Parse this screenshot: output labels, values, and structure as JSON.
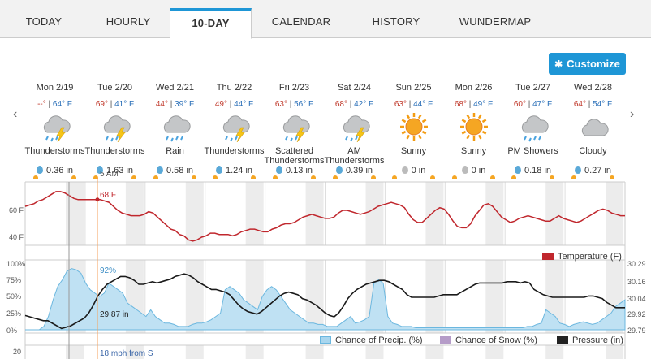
{
  "tabs": [
    {
      "label": "TODAY",
      "active": false
    },
    {
      "label": "HOURLY",
      "active": false
    },
    {
      "label": "10-DAY",
      "active": true
    },
    {
      "label": "CALENDAR",
      "active": false
    },
    {
      "label": "HISTORY",
      "active": false
    },
    {
      "label": "WUNDERMAP",
      "active": false
    }
  ],
  "customize_label": "Customize",
  "nav": {
    "prev": "‹",
    "next": "›"
  },
  "days": [
    {
      "date": "Mon 2/19",
      "hi": "--°",
      "lo": "64° F",
      "icon": "thunderstorm-icon",
      "condition": "Thunderstorms",
      "precip": "0.36 in"
    },
    {
      "date": "Tue 2/20",
      "hi": "69°",
      "lo": "41° F",
      "icon": "thunderstorm-icon",
      "condition": "Thunderstorms",
      "precip": "1.63 in"
    },
    {
      "date": "Wed 2/21",
      "hi": "44°",
      "lo": "39° F",
      "icon": "rain-icon",
      "condition": "Rain",
      "precip": "0.58 in"
    },
    {
      "date": "Thu 2/22",
      "hi": "49°",
      "lo": "44° F",
      "icon": "thunderstorm-icon",
      "condition": "Thunderstorms",
      "precip": "1.24 in"
    },
    {
      "date": "Fri 2/23",
      "hi": "63°",
      "lo": "56° F",
      "icon": "thunderstorm-icon",
      "condition": "Scattered Thunderstorms",
      "precip": "0.13 in"
    },
    {
      "date": "Sat 2/24",
      "hi": "68°",
      "lo": "42° F",
      "icon": "thunderstorm-icon",
      "condition": "AM Thunderstorms",
      "precip": "0.39 in"
    },
    {
      "date": "Sun 2/25",
      "hi": "63°",
      "lo": "44° F",
      "icon": "sun-icon",
      "condition": "Sunny",
      "precip": "0 in"
    },
    {
      "date": "Mon 2/26",
      "hi": "68°",
      "lo": "49° F",
      "icon": "sun-icon",
      "condition": "Sunny",
      "precip": "0 in"
    },
    {
      "date": "Tue 2/27",
      "hi": "60°",
      "lo": "47° F",
      "icon": "rain-icon",
      "condition": "PM Showers",
      "precip": "0.18 in"
    },
    {
      "date": "Wed 2/28",
      "hi": "64°",
      "lo": "54° F",
      "icon": "cloud-icon",
      "condition": "Cloudy",
      "precip": "0.27 in"
    }
  ],
  "hover": {
    "time": "5 AM",
    "temp": "68 F",
    "precip": "92%",
    "pressure": "29.87 in",
    "wind": "18 mph from S"
  },
  "temp_chart": {
    "y_ticks": [
      "60 F",
      "40 F"
    ],
    "legend": "Temperature (F)",
    "color": "#c0272d",
    "values": [
      63,
      64,
      65,
      67,
      68,
      70,
      72,
      74,
      74,
      73,
      71,
      69,
      68,
      68,
      68,
      68,
      68,
      68,
      67,
      66,
      63,
      60,
      58,
      57,
      56,
      56,
      56,
      57,
      59,
      58,
      55,
      52,
      49,
      46,
      45,
      42,
      41,
      38,
      37,
      38,
      40,
      41,
      43,
      43,
      42,
      42,
      42,
      41,
      42,
      44,
      45,
      46,
      46,
      45,
      44,
      44,
      46,
      47,
      49,
      50,
      50,
      51,
      53,
      55,
      56,
      57,
      56,
      55,
      54,
      54,
      55,
      58,
      60,
      60,
      59,
      58,
      57,
      58,
      59,
      61,
      63,
      64,
      65,
      66,
      65,
      64,
      62,
      57,
      53,
      51,
      51,
      54,
      57,
      60,
      62,
      61,
      57,
      52,
      48,
      47,
      47,
      50,
      56,
      60,
      64,
      65,
      63,
      59,
      55,
      53,
      51,
      52,
      54,
      55,
      56,
      55,
      54,
      53,
      52,
      52,
      54,
      56,
      54,
      53,
      52,
      51,
      52,
      54,
      56,
      58,
      60,
      61,
      60,
      58,
      57,
      56,
      56
    ]
  },
  "combo_chart": {
    "left_ticks": [
      "100%",
      "75%",
      "50%",
      "25%",
      "0%"
    ],
    "right_ticks": [
      "30.29",
      "30.16",
      "30.04",
      "29.92",
      "29.79"
    ],
    "legend": [
      {
        "label": "Chance of Precip. (%)",
        "color": "#a9d6ee"
      },
      {
        "label": "Chance of Snow (%)",
        "color": "#b59cc8"
      },
      {
        "label": "Pressure (in)",
        "color": "#222222"
      }
    ],
    "precip_values": [
      0,
      0,
      0,
      0,
      5,
      20,
      45,
      65,
      75,
      88,
      92,
      90,
      85,
      70,
      60,
      55,
      50,
      55,
      70,
      65,
      60,
      55,
      40,
      35,
      30,
      25,
      20,
      30,
      20,
      15,
      10,
      10,
      8,
      5,
      5,
      5,
      8,
      10,
      10,
      12,
      15,
      20,
      25,
      60,
      65,
      60,
      55,
      45,
      40,
      35,
      30,
      50,
      60,
      65,
      60,
      50,
      40,
      30,
      25,
      20,
      15,
      10,
      10,
      8,
      8,
      5,
      5,
      5,
      10,
      15,
      20,
      10,
      12,
      15,
      20,
      70,
      75,
      70,
      20,
      10,
      8,
      5,
      5,
      5,
      3,
      3,
      3,
      3,
      3,
      3,
      3,
      3,
      3,
      3,
      3,
      3,
      3,
      3,
      3,
      3,
      3,
      3,
      3,
      3,
      3,
      3,
      3,
      3,
      5,
      5,
      8,
      10,
      30,
      25,
      20,
      10,
      8,
      5,
      8,
      10,
      12,
      10,
      8,
      10,
      15,
      20,
      25,
      35,
      40,
      45
    ],
    "pressure_values": [
      29.9,
      29.89,
      29.88,
      29.87,
      29.86,
      29.86,
      29.84,
      29.82,
      29.8,
      29.81,
      29.82,
      29.84,
      29.86,
      29.88,
      29.92,
      29.98,
      30.05,
      30.1,
      30.14,
      30.16,
      30.18,
      30.2,
      30.2,
      30.19,
      30.17,
      30.14,
      30.14,
      30.15,
      30.16,
      30.15,
      30.16,
      30.17,
      30.18,
      30.2,
      30.21,
      30.22,
      30.21,
      30.19,
      30.16,
      30.14,
      30.12,
      30.1,
      30.1,
      30.09,
      30.08,
      30.06,
      30.02,
      29.98,
      29.95,
      29.93,
      29.92,
      29.91,
      29.93,
      29.96,
      29.99,
      30.02,
      30.05,
      30.07,
      30.08,
      30.07,
      30.06,
      30.03,
      30.02,
      30.0,
      29.98,
      29.95,
      29.92,
      29.9,
      29.89,
      29.92,
      29.97,
      30.03,
      30.07,
      30.1,
      30.12,
      30.14,
      30.15,
      30.16,
      30.17,
      30.17,
      30.16,
      30.14,
      30.12,
      30.1,
      30.06,
      30.04,
      30.04,
      30.04,
      30.04,
      30.04,
      30.04,
      30.05,
      30.06,
      30.06,
      30.06,
      30.06,
      30.08,
      30.1,
      30.12,
      30.14,
      30.15,
      30.15,
      30.15,
      30.15,
      30.15,
      30.15,
      30.16,
      30.16,
      30.16,
      30.15,
      30.16,
      30.15,
      30.1,
      30.08,
      30.06,
      30.05,
      30.04,
      30.04,
      30.04,
      30.04,
      30.04,
      30.04,
      30.04,
      30.04,
      30.05,
      30.05,
      30.04,
      30.03,
      30.0,
      29.98,
      29.96,
      29.96,
      29.96
    ]
  },
  "wind_chart": {
    "y_tick": "20"
  }
}
